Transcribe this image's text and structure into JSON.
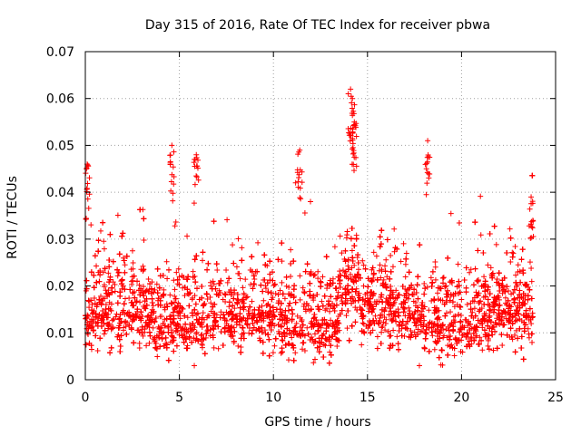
{
  "chart_data": {
    "type": "scatter",
    "title": "Day 315 of 2016, Rate Of TEC Index for receiver pbwa",
    "xlabel": "GPS time / hours",
    "ylabel": "ROTI / TECUs",
    "xlim": [
      0,
      25
    ],
    "ylim": [
      0,
      0.07
    ],
    "x_ticks": [
      0,
      5,
      10,
      15,
      20,
      25
    ],
    "y_ticks": [
      0,
      0.01,
      0.02,
      0.03,
      0.04,
      0.05,
      0.06,
      0.07
    ],
    "x_tick_labels": [
      "0",
      "5",
      "10",
      "15",
      "20",
      "25"
    ],
    "y_tick_labels": [
      "0",
      "0.01",
      "0.02",
      "0.03",
      "0.04",
      "0.05",
      "0.06",
      "0.07"
    ],
    "grid": true,
    "marker": "+",
    "marker_color": "#ff0000",
    "x_range_of_data": [
      0,
      23.8
    ],
    "typical_range": [
      0.005,
      0.03
    ],
    "notable_points": [
      {
        "x": 0.1,
        "y": 0.046
      },
      {
        "x": 4.6,
        "y": 0.05
      },
      {
        "x": 5.9,
        "y": 0.048
      },
      {
        "x": 11.4,
        "y": 0.049
      },
      {
        "x": 14.1,
        "y": 0.062
      },
      {
        "x": 14.2,
        "y": 0.06
      },
      {
        "x": 14.3,
        "y": 0.055
      },
      {
        "x": 18.2,
        "y": 0.051
      },
      {
        "x": 23.7,
        "y": 0.039
      }
    ]
  }
}
